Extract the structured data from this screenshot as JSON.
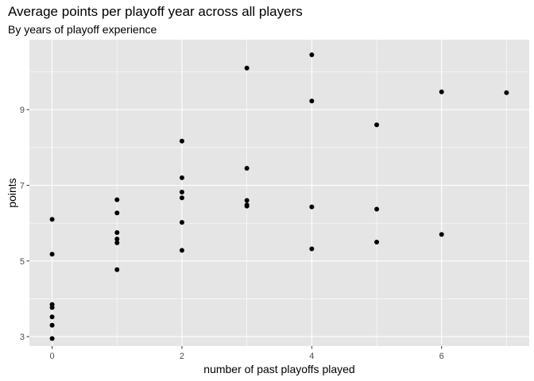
{
  "chart_data": {
    "type": "scatter",
    "title": "Average points per playoff year across all players",
    "subtitle": "By years of playoff experience",
    "xlabel": "number of past playoffs played",
    "ylabel": "points",
    "xlim": [
      -0.35,
      7.35
    ],
    "ylim": [
      2.75,
      10.85
    ],
    "x_ticks": [
      0,
      2,
      4,
      6
    ],
    "y_ticks": [
      3,
      5,
      7,
      9
    ],
    "grid": true,
    "legend": "none",
    "colors": {
      "panel": "#e5e5e5",
      "grid": "#ffffff",
      "point": "#000000",
      "tick_text": "#4d4d4d"
    },
    "points": [
      {
        "x": 0,
        "y": 2.95
      },
      {
        "x": 0,
        "y": 3.3
      },
      {
        "x": 0,
        "y": 3.52
      },
      {
        "x": 0,
        "y": 3.77
      },
      {
        "x": 0,
        "y": 3.85
      },
      {
        "x": 0,
        "y": 5.18
      },
      {
        "x": 0,
        "y": 6.1
      },
      {
        "x": 1,
        "y": 4.77
      },
      {
        "x": 1,
        "y": 5.48
      },
      {
        "x": 1,
        "y": 5.58
      },
      {
        "x": 1,
        "y": 5.75
      },
      {
        "x": 1,
        "y": 6.27
      },
      {
        "x": 1,
        "y": 6.62
      },
      {
        "x": 2,
        "y": 5.28
      },
      {
        "x": 2,
        "y": 6.02
      },
      {
        "x": 2,
        "y": 6.67
      },
      {
        "x": 2,
        "y": 6.82
      },
      {
        "x": 2,
        "y": 7.2
      },
      {
        "x": 2,
        "y": 8.17
      },
      {
        "x": 3,
        "y": 6.45
      },
      {
        "x": 3,
        "y": 6.48
      },
      {
        "x": 3,
        "y": 6.6
      },
      {
        "x": 3,
        "y": 7.45
      },
      {
        "x": 3,
        "y": 10.1
      },
      {
        "x": 4,
        "y": 5.32
      },
      {
        "x": 4,
        "y": 6.43
      },
      {
        "x": 4,
        "y": 9.23
      },
      {
        "x": 4,
        "y": 10.45
      },
      {
        "x": 5,
        "y": 5.5
      },
      {
        "x": 5,
        "y": 6.37
      },
      {
        "x": 5,
        "y": 8.6
      },
      {
        "x": 6,
        "y": 5.7
      },
      {
        "x": 6,
        "y": 9.47
      },
      {
        "x": 7,
        "y": 9.45
      }
    ]
  }
}
